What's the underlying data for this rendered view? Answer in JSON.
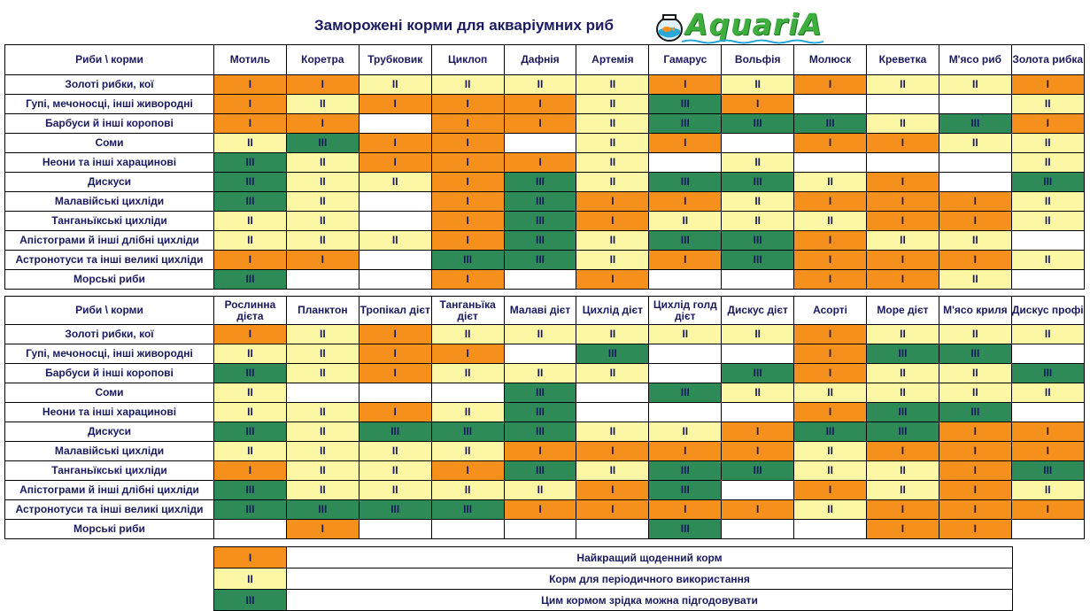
{
  "title": "Заморожені корми для акваріумних риб",
  "logo": {
    "text": "AquariA",
    "bowl_icon": "fishbowl-icon",
    "colors": {
      "text": "#3eae3e",
      "wave": "#2aa7d8"
    }
  },
  "colors": {
    "1": "#f5901c",
    "2": "#fbf7a5",
    "3": "#2e8b57",
    "0": "#ffffff"
  },
  "levels": {
    "1": "I",
    "2": "II",
    "3": "III",
    "0": ""
  },
  "fish": [
    "Золоті рибки, кої",
    "Гупі, мечоносці, інші живородні",
    "Барбуси й інші коропові",
    "Соми",
    "Неони та інші харацинові",
    "Дискуси",
    "Малавійські цихліди",
    "Танганьїкські цихліди",
    "Апістограми й інші длібні цихліди",
    "Астронотуси та інші великі цихліди",
    "Морські риби"
  ],
  "table1": {
    "corner": "Риби \\ корми",
    "foods": [
      "Мотиль",
      "Коретра",
      "Трубковик",
      "Циклоп",
      "Дафнія",
      "Артемія",
      "Гамарус",
      "Вольфія",
      "Молюск",
      "Креветка",
      "М'ясо риб",
      "Золота рибка"
    ],
    "rows": [
      [
        1,
        1,
        2,
        2,
        2,
        2,
        1,
        2,
        1,
        2,
        2,
        1
      ],
      [
        1,
        2,
        1,
        1,
        1,
        2,
        3,
        1,
        0,
        0,
        0,
        2
      ],
      [
        1,
        1,
        0,
        1,
        1,
        2,
        3,
        3,
        3,
        2,
        3,
        1
      ],
      [
        2,
        3,
        1,
        1,
        0,
        2,
        1,
        0,
        1,
        1,
        2,
        2
      ],
      [
        3,
        2,
        1,
        1,
        1,
        2,
        0,
        2,
        0,
        0,
        0,
        2
      ],
      [
        3,
        2,
        2,
        1,
        3,
        2,
        3,
        3,
        2,
        1,
        0,
        3
      ],
      [
        3,
        2,
        0,
        1,
        3,
        1,
        1,
        2,
        1,
        1,
        1,
        2
      ],
      [
        2,
        2,
        0,
        1,
        3,
        1,
        2,
        2,
        2,
        1,
        1,
        2
      ],
      [
        2,
        2,
        2,
        1,
        3,
        2,
        3,
        3,
        1,
        2,
        2,
        0
      ],
      [
        1,
        1,
        0,
        3,
        3,
        2,
        1,
        3,
        1,
        1,
        1,
        2
      ],
      [
        3,
        0,
        0,
        1,
        0,
        1,
        0,
        0,
        1,
        1,
        2,
        0
      ]
    ]
  },
  "table2": {
    "corner": "Риби \\ корми",
    "foods": [
      "Рослинна дієта",
      "Планктон",
      "Тропікал дієт",
      "Танганьїка дієт",
      "Малаві дієт",
      "Цихлід дієт",
      "Цихлід голд дієт",
      "Дискус дієт",
      "Асорті",
      "Море дієт",
      "М'ясо криля",
      "Дискус профі"
    ],
    "rows": [
      [
        1,
        2,
        1,
        2,
        2,
        2,
        2,
        2,
        1,
        2,
        2,
        2
      ],
      [
        2,
        2,
        1,
        1,
        0,
        3,
        0,
        0,
        1,
        3,
        3,
        0
      ],
      [
        3,
        2,
        1,
        2,
        2,
        2,
        0,
        3,
        1,
        2,
        2,
        3
      ],
      [
        2,
        0,
        0,
        0,
        3,
        0,
        3,
        2,
        2,
        2,
        2,
        2
      ],
      [
        2,
        2,
        1,
        2,
        3,
        0,
        0,
        0,
        1,
        3,
        3,
        0
      ],
      [
        3,
        2,
        3,
        3,
        3,
        2,
        2,
        1,
        3,
        3,
        1,
        1
      ],
      [
        2,
        2,
        2,
        2,
        1,
        1,
        1,
        1,
        2,
        1,
        1,
        1
      ],
      [
        1,
        2,
        2,
        1,
        3,
        2,
        3,
        3,
        2,
        2,
        1,
        3
      ],
      [
        3,
        2,
        2,
        2,
        2,
        1,
        3,
        0,
        1,
        2,
        1,
        2
      ],
      [
        3,
        3,
        3,
        3,
        1,
        1,
        1,
        1,
        2,
        1,
        1,
        1
      ],
      [
        0,
        1,
        0,
        0,
        0,
        0,
        3,
        0,
        0,
        1,
        1,
        0
      ]
    ]
  },
  "legend": [
    {
      "level": 1,
      "text": "Найкращий щоденний корм"
    },
    {
      "level": 2,
      "text": "Корм для періодичного використання"
    },
    {
      "level": 3,
      "text": "Цим кормом зрідка можна підгодовувати"
    }
  ]
}
